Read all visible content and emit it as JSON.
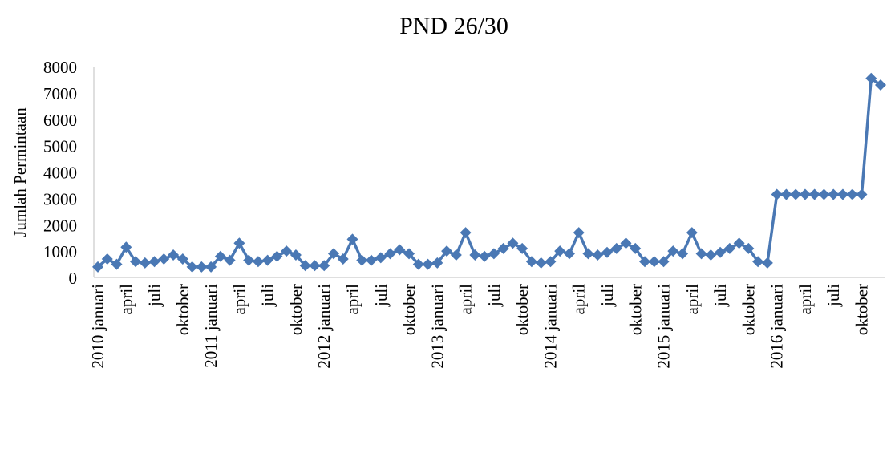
{
  "chart_data": {
    "type": "line",
    "title": "PND 26/30",
    "y_label": "Jumlah Permintaan",
    "color": "#4a78b4",
    "categories": [
      "2010 januari",
      null,
      null,
      "april",
      null,
      null,
      "juli",
      null,
      null,
      "oktober",
      null,
      null,
      "2011 januari",
      null,
      null,
      "april",
      null,
      null,
      "juli",
      null,
      null,
      "oktober",
      null,
      null,
      "2012 januari",
      null,
      null,
      "april",
      null,
      null,
      "juli",
      null,
      null,
      "oktober",
      null,
      null,
      "2013 januari",
      null,
      null,
      "april",
      null,
      null,
      "juli",
      null,
      null,
      "oktober",
      null,
      null,
      "2014 januari",
      null,
      null,
      "april",
      null,
      null,
      "juli",
      null,
      null,
      "oktober",
      null,
      null,
      "2015 januari",
      null,
      null,
      "april",
      null,
      null,
      "juli",
      null,
      null,
      "oktober",
      null,
      null,
      "2016 januari",
      null,
      null,
      "april",
      null,
      null,
      "juli",
      null,
      null,
      "oktober",
      null,
      null
    ],
    "values": [
      400,
      700,
      500,
      1150,
      600,
      550,
      600,
      700,
      850,
      700,
      400,
      400,
      400,
      800,
      650,
      1300,
      650,
      600,
      650,
      800,
      1000,
      850,
      450,
      450,
      450,
      900,
      700,
      1450,
      650,
      650,
      750,
      900,
      1050,
      900,
      500,
      500,
      550,
      1000,
      850,
      1700,
      850,
      800,
      900,
      1100,
      1300,
      1100,
      600,
      550,
      600,
      1000,
      900,
      1700,
      900,
      850,
      950,
      1100,
      1300,
      1100,
      600,
      600,
      600,
      1000,
      900,
      1700,
      900,
      850,
      950,
      1100,
      1300,
      1100,
      600,
      550,
      3150,
      3150,
      3150,
      3150,
      3150,
      3150,
      3150,
      3150,
      3150,
      3150,
      7550,
      7300
    ],
    "ylim": [
      0,
      8000
    ],
    "yticks": [
      0,
      1000,
      2000,
      3000,
      4000,
      5000,
      6000,
      7000,
      8000
    ]
  }
}
